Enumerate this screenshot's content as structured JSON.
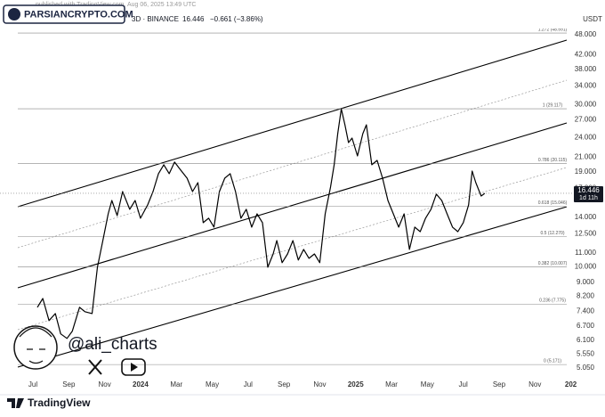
{
  "chart_data": {
    "type": "line",
    "brand": "PARSIANCRYPTO.COM",
    "published": "published with TradingView.com, Aug 06, 2025 13:49 UTC",
    "header": "3D · BINANCE",
    "header_price": "16.446",
    "header_change": "−0.661 (−3.86%)",
    "currency": "USDT",
    "countdown": "1d 11h",
    "watermark": "@ali_charts",
    "footer": "TradingView",
    "log_scale": true,
    "grid": false,
    "xlim": [
      -1.836,
      30.17
    ],
    "ylim": [
      4.56,
      50.7
    ],
    "xticks": [
      {
        "value": 0,
        "label": "Jul"
      },
      {
        "value": 2,
        "label": "Sep"
      },
      {
        "value": 4,
        "label": "Nov"
      },
      {
        "value": 6,
        "label": "2024"
      },
      {
        "value": 8,
        "label": "Mar"
      },
      {
        "value": 10,
        "label": "May"
      },
      {
        "value": 12,
        "label": "Jul"
      },
      {
        "value": 14,
        "label": "Sep"
      },
      {
        "value": 16,
        "label": "Nov"
      },
      {
        "value": 18,
        "label": "2025"
      },
      {
        "value": 20,
        "label": "Mar"
      },
      {
        "value": 22,
        "label": "May"
      },
      {
        "value": 24,
        "label": "Jul"
      },
      {
        "value": 26,
        "label": "Sep"
      },
      {
        "value": 28,
        "label": "Nov"
      },
      {
        "value": 30,
        "label": "202"
      }
    ],
    "yticks": [
      {
        "value": 48,
        "label": "48.000"
      },
      {
        "value": 42,
        "label": "42.000"
      },
      {
        "value": 38,
        "label": "38.000"
      },
      {
        "value": 34,
        "label": "34.000"
      },
      {
        "value": 30,
        "label": "30.000"
      },
      {
        "value": 27,
        "label": "27.000"
      },
      {
        "value": 24,
        "label": "24.000"
      },
      {
        "value": 21,
        "label": "21.000"
      },
      {
        "value": 19,
        "label": "19.000"
      },
      {
        "value": 17,
        "label": "17.000"
      },
      {
        "value": 14,
        "label": "14.000"
      },
      {
        "value": 12.5,
        "label": "12.500"
      },
      {
        "value": 11,
        "label": "11.000"
      },
      {
        "value": 10,
        "label": "10.000"
      },
      {
        "value": 9,
        "label": "9.000"
      },
      {
        "value": 8.2,
        "label": "8.200"
      },
      {
        "value": 7.4,
        "label": "7.400"
      },
      {
        "value": 6.7,
        "label": "6.700"
      },
      {
        "value": 6.1,
        "label": "6.100"
      },
      {
        "value": 5.55,
        "label": "5.550"
      },
      {
        "value": 5.05,
        "label": "5.050"
      }
    ],
    "fib_levels": [
      {
        "value": 48.591,
        "label": "1.272 (48.591)"
      },
      {
        "value": 29.117,
        "label": "1 (29.117)"
      },
      {
        "value": 20.115,
        "label": "0.786 (20.115)"
      },
      {
        "value": 15.046,
        "label": "0.618 (15.046)"
      },
      {
        "value": 12.27,
        "label": "0.5 (12.270)"
      },
      {
        "value": 10.007,
        "label": "0.382 (10.007)"
      },
      {
        "value": 7.775,
        "label": "0.236 (7.775)"
      },
      {
        "value": 5.171,
        "label": "0 (5.171)"
      }
    ],
    "series": [
      {
        "name": "PRICE",
        "color": "#000000",
        "x": [
          0.25,
          0.55,
          0.9,
          1.25,
          1.55,
          1.9,
          2.2,
          2.6,
          2.9,
          3.3,
          3.6,
          3.9,
          4.2,
          4.4,
          4.7,
          5.0,
          5.4,
          5.7,
          6.0,
          6.4,
          6.7,
          7.0,
          7.3,
          7.6,
          7.9,
          8.2,
          8.6,
          8.9,
          9.2,
          9.5,
          9.8,
          10.1,
          10.4,
          10.7,
          11.0,
          11.3,
          11.6,
          11.9,
          12.2,
          12.5,
          12.8,
          13.1,
          13.4,
          13.6,
          13.9,
          14.2,
          14.5,
          14.8,
          15.1,
          15.4,
          15.7,
          16.0,
          16.3,
          16.6,
          16.8,
          17.0,
          17.2,
          17.4,
          17.6,
          17.8,
          18.1,
          18.4,
          18.6,
          18.9,
          19.2,
          19.5,
          19.8,
          20.1,
          20.4,
          20.7,
          21.0,
          21.3,
          21.6,
          21.9,
          22.2,
          22.5,
          22.8,
          23.1,
          23.4,
          23.7,
          24.0,
          24.3,
          24.5,
          24.7,
          25.0,
          25.2
        ],
        "values": [
          7.61,
          8.08,
          6.96,
          7.3,
          6.36,
          6.17,
          6.48,
          7.61,
          7.39,
          7.3,
          9.98,
          11.95,
          14.32,
          15.67,
          14.15,
          16.64,
          14.76,
          15.67,
          13.9,
          15.21,
          16.64,
          18.78,
          19.95,
          18.78,
          20.31,
          19.36,
          18.21,
          16.64,
          17.67,
          13.49,
          13.9,
          13.09,
          16.64,
          18.21,
          18.78,
          16.64,
          13.9,
          14.76,
          13.09,
          14.32,
          13.49,
          9.98,
          10.92,
          11.95,
          10.29,
          10.92,
          11.95,
          10.48,
          11.26,
          10.6,
          10.92,
          10.29,
          14.32,
          17.15,
          19.95,
          24.61,
          29.1,
          26.13,
          23.17,
          23.88,
          21.18,
          24.61,
          26.13,
          19.95,
          20.55,
          18.21,
          15.67,
          14.32,
          13.09,
          14.32,
          11.26,
          13.09,
          12.69,
          13.9,
          14.76,
          16.35,
          15.67,
          14.32,
          13.09,
          12.69,
          13.49,
          15.21,
          19.12,
          17.67,
          16.15,
          16.446
        ]
      }
    ]
  }
}
